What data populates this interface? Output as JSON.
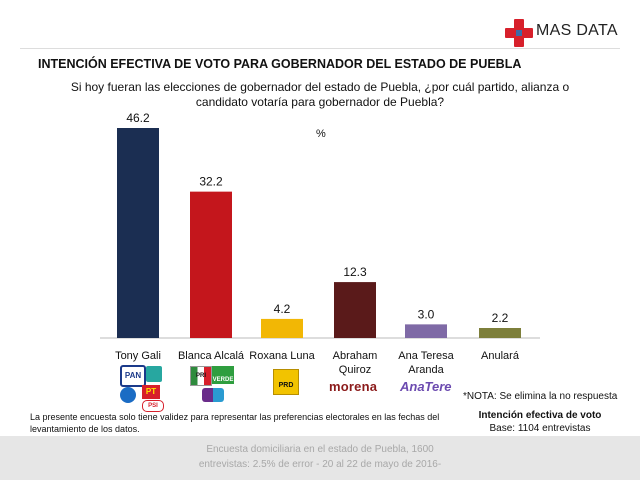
{
  "brand": {
    "name": "MAS DATA",
    "colors": {
      "red": "#d7202b",
      "blue": "#3b6ca8"
    }
  },
  "header": {
    "title": "INTENCIÓN EFECTIVA DE VOTO PARA GOBERNADOR DEL ESTADO DE PUEBLA",
    "question": "Si hoy fueran las elecciones de gobernador del estado de Puebla, ¿por cuál partido, alianza o candidato votaría para gobernador de Puebla?",
    "unit": "%"
  },
  "chart_data": {
    "type": "bar",
    "categories": [
      "Tony Gali",
      "Blanca Alcalá",
      "Roxana Luna",
      "Abraham Quiroz",
      "Ana Teresa Aranda",
      "Anulará"
    ],
    "values": [
      46.2,
      32.2,
      4.2,
      12.3,
      3.0,
      2.2
    ],
    "value_labels": [
      "46.2",
      "32.2",
      "4.2",
      "12.3",
      "3.0",
      "2.2"
    ],
    "colors": [
      "#1b2e52",
      "#c4161c",
      "#f2b705",
      "#5a1a1a",
      "#7f6aa6",
      "#7d7f3b"
    ],
    "ylim": [
      0,
      46.2
    ],
    "grid": false,
    "legend": "none"
  },
  "party_logos": [
    {
      "candidate": "Tony Gali",
      "logos": [
        "pan-logo",
        "nueva-alianza-logo",
        "pt-logo",
        "compromiso-por-puebla-logo",
        "psi-logo"
      ],
      "texts": [
        "PAN",
        "PT",
        "PSI"
      ]
    },
    {
      "candidate": "Blanca Alcalá",
      "logos": [
        "pri-logo",
        "verde-logo",
        "encuentro-social-logo"
      ],
      "texts": [
        "PRI",
        "VERDE"
      ]
    },
    {
      "candidate": "Roxana Luna",
      "logos": [
        "prd-logo"
      ],
      "texts": [
        "PRD"
      ]
    },
    {
      "candidate": "Abraham Quiroz",
      "logos": [
        "morena-logo"
      ],
      "texts": [
        "morena"
      ]
    },
    {
      "candidate": "Ana Teresa Aranda",
      "logos": [
        "anatere-logo"
      ],
      "texts": [
        "AnaTere"
      ]
    },
    {
      "candidate": "Anulará",
      "logos": [],
      "texts": []
    }
  ],
  "notes": {
    "no_response": "*NOTA: Se elimina la no respuesta",
    "disclaimer": "La presente encuesta solo tiene validez para representar las preferencias electorales en las fechas del levantamiento de los datos.",
    "metric_title": "Intención efectiva de voto",
    "metric_base": "Base: 1104 entrevistas"
  },
  "footer": {
    "line1": "Encuesta domiciliaria en el estado de Puebla, 1600",
    "line2": "entrevistas: 2.5% de error - 20 al 22 de mayo de 2016-"
  }
}
